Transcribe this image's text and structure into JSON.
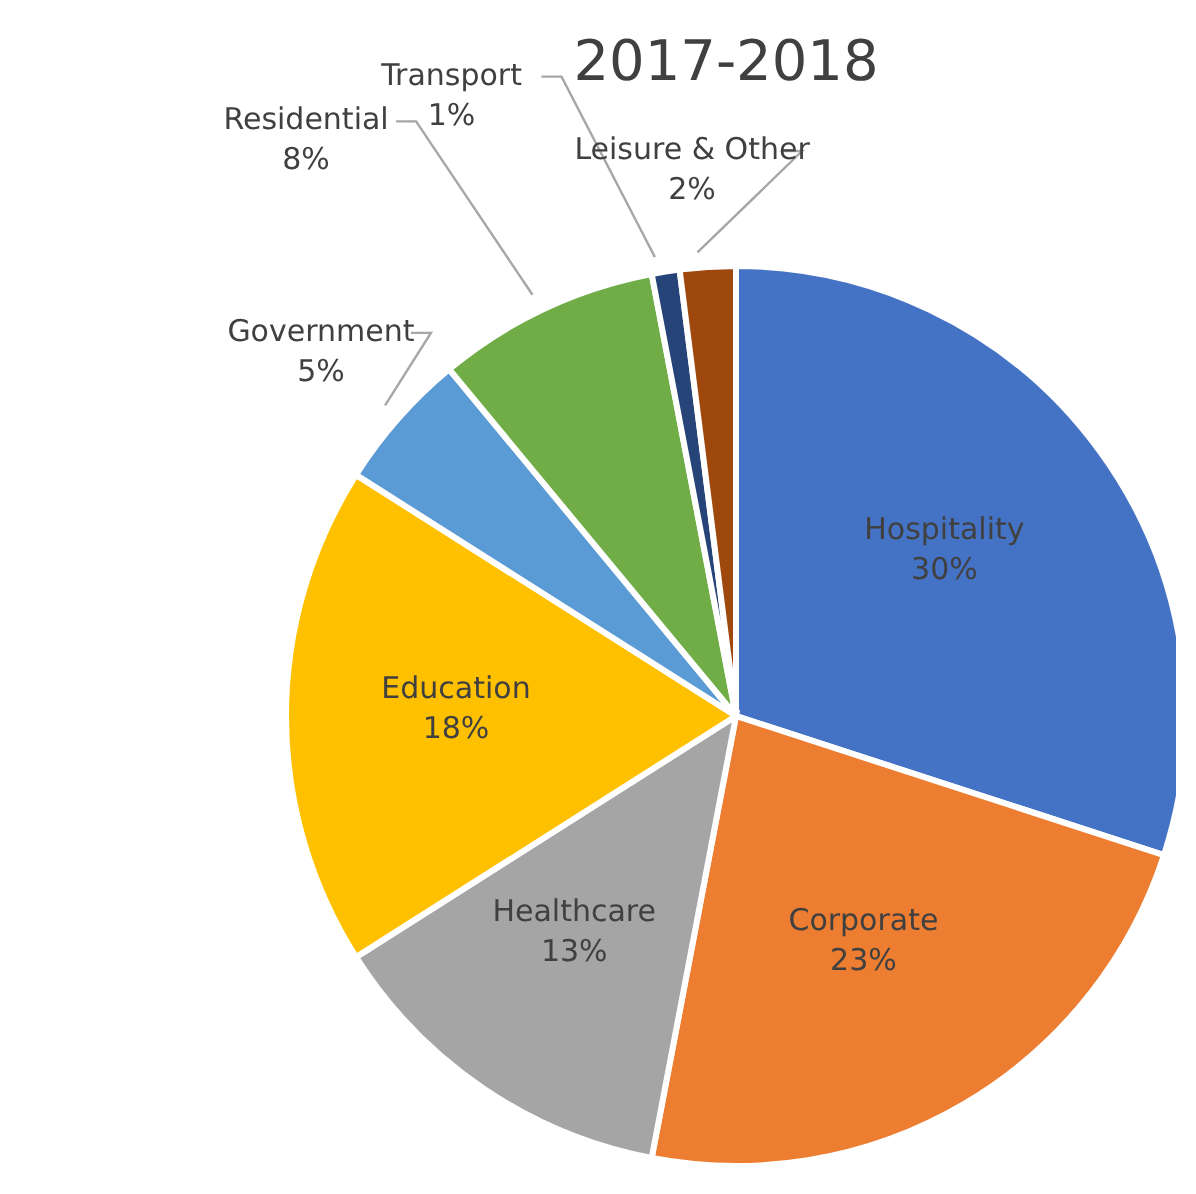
{
  "chart_data": {
    "type": "pie",
    "title": "2017-2018",
    "categories": [
      "Hospitality",
      "Corporate",
      "Healthcare",
      "Education",
      "Government",
      "Residential",
      "Transport",
      "Leisure & Other"
    ],
    "values": [
      30,
      23,
      13,
      18,
      5,
      8,
      1,
      2
    ],
    "value_labels": [
      "30%",
      "23%",
      "13%",
      "18%",
      "5%",
      "8%",
      "1%",
      "2%"
    ],
    "colors": [
      "#4472c4",
      "#ed7d31",
      "#a5a5a5",
      "#ffc000",
      "#5b9bd5",
      "#70ad47",
      "#264478",
      "#9e480e"
    ],
    "legend": false
  }
}
